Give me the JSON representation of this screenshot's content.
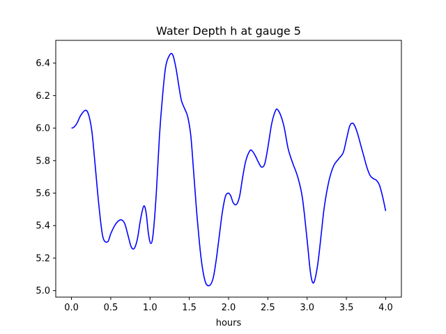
{
  "chart_data": {
    "type": "line",
    "title": "Water Depth h at gauge 5",
    "xlabel": "hours",
    "ylabel": "",
    "xlim": [
      -0.2,
      4.2
    ],
    "ylim": [
      4.96,
      6.54
    ],
    "xticks": [
      0.0,
      0.5,
      1.0,
      1.5,
      2.0,
      2.5,
      3.0,
      3.5,
      4.0
    ],
    "xtick_labels": [
      "0.0",
      "0.5",
      "1.0",
      "1.5",
      "2.0",
      "2.5",
      "3.0",
      "3.5",
      "4.0"
    ],
    "yticks": [
      5.0,
      5.2,
      5.4,
      5.6,
      5.8,
      6.0,
      6.2,
      6.4
    ],
    "ytick_labels": [
      "5.0",
      "5.2",
      "5.4",
      "5.6",
      "5.8",
      "6.0",
      "6.2",
      "6.4"
    ],
    "grid": false,
    "series": [
      {
        "color": "#0000ff",
        "x": [
          0.0,
          0.03,
          0.07,
          0.12,
          0.18,
          0.22,
          0.26,
          0.3,
          0.35,
          0.4,
          0.46,
          0.5,
          0.55,
          0.6,
          0.64,
          0.68,
          0.72,
          0.76,
          0.8,
          0.84,
          0.88,
          0.92,
          0.95,
          0.98,
          1.01,
          1.04,
          1.08,
          1.12,
          1.16,
          1.2,
          1.25,
          1.29,
          1.33,
          1.37,
          1.4,
          1.44,
          1.48,
          1.52,
          1.56,
          1.6,
          1.65,
          1.7,
          1.75,
          1.8,
          1.84,
          1.88,
          1.92,
          1.96,
          2.0,
          2.03,
          2.06,
          2.1,
          2.14,
          2.18,
          2.22,
          2.27,
          2.3,
          2.34,
          2.38,
          2.42,
          2.46,
          2.5,
          2.55,
          2.6,
          2.63,
          2.67,
          2.71,
          2.76,
          2.82,
          2.88,
          2.94,
          3.0,
          3.04,
          3.07,
          3.1,
          3.14,
          3.18,
          3.22,
          3.28,
          3.34,
          3.4,
          3.46,
          3.5,
          3.54,
          3.57,
          3.6,
          3.64,
          3.68,
          3.72,
          3.76,
          3.8,
          3.84,
          3.88,
          3.92,
          3.96,
          4.0
        ],
        "y": [
          6.0,
          6.005,
          6.03,
          6.08,
          6.11,
          6.08,
          5.98,
          5.78,
          5.52,
          5.33,
          5.3,
          5.35,
          5.4,
          5.43,
          5.435,
          5.41,
          5.34,
          5.27,
          5.26,
          5.32,
          5.44,
          5.52,
          5.48,
          5.35,
          5.29,
          5.35,
          5.6,
          5.95,
          6.2,
          6.38,
          6.45,
          6.45,
          6.37,
          6.25,
          6.17,
          6.12,
          6.07,
          5.95,
          5.7,
          5.45,
          5.2,
          5.06,
          5.03,
          5.07,
          5.18,
          5.33,
          5.48,
          5.58,
          5.6,
          5.58,
          5.54,
          5.53,
          5.58,
          5.7,
          5.8,
          5.86,
          5.86,
          5.83,
          5.79,
          5.76,
          5.78,
          5.88,
          6.03,
          6.11,
          6.11,
          6.07,
          6.0,
          5.87,
          5.78,
          5.7,
          5.57,
          5.31,
          5.12,
          5.05,
          5.07,
          5.18,
          5.35,
          5.52,
          5.68,
          5.77,
          5.81,
          5.85,
          5.93,
          6.01,
          6.03,
          6.02,
          5.97,
          5.9,
          5.83,
          5.76,
          5.71,
          5.69,
          5.68,
          5.65,
          5.58,
          5.49
        ]
      }
    ]
  }
}
